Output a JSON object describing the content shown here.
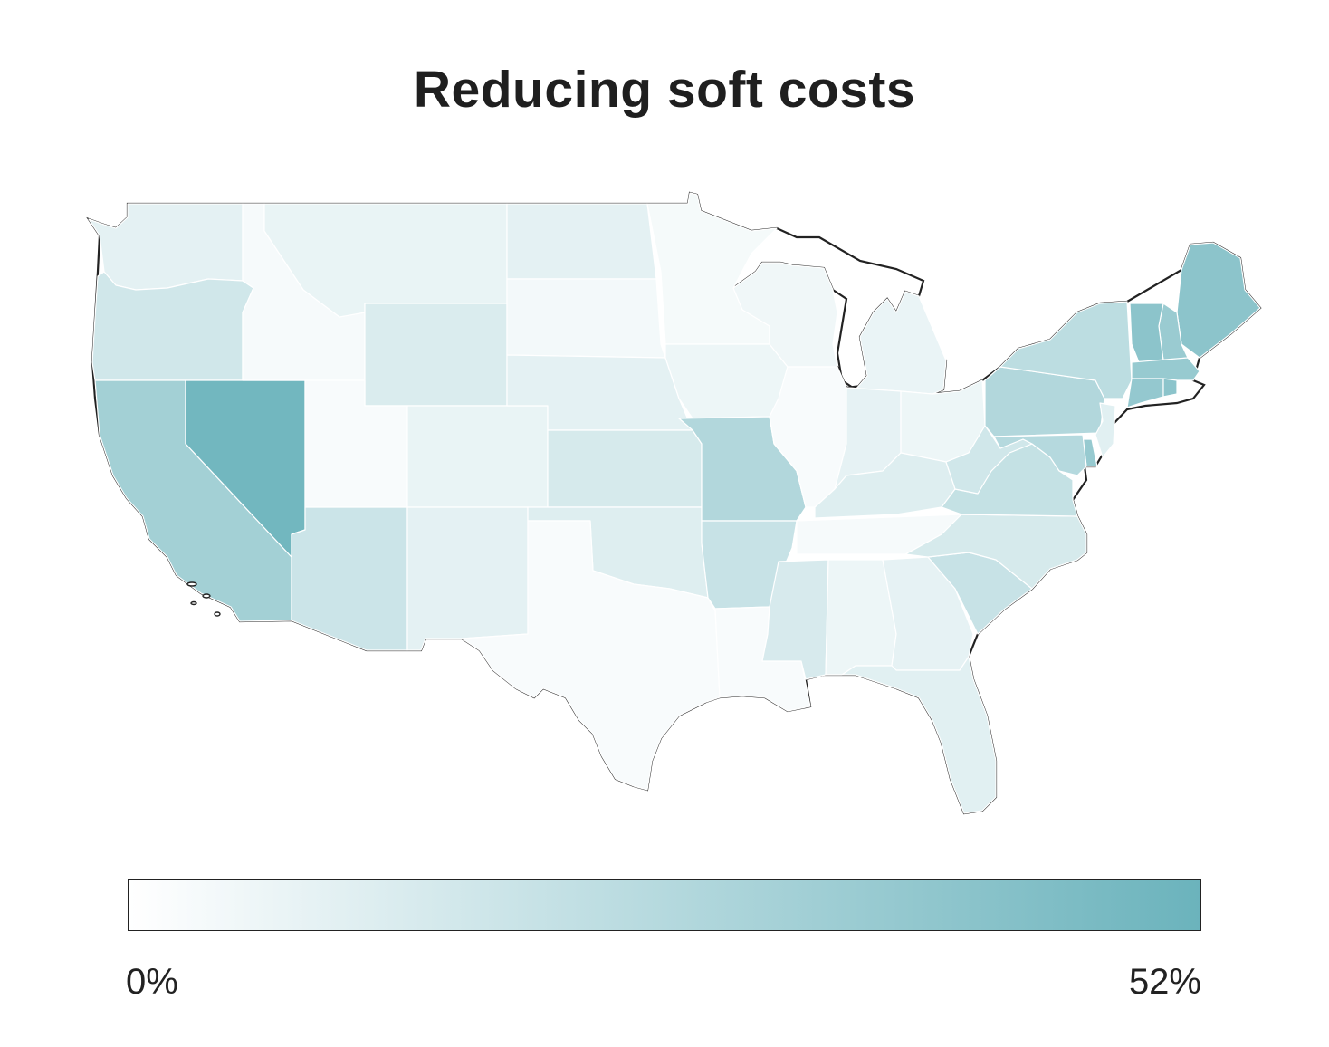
{
  "title": "Reducing soft costs",
  "legend": {
    "min_label": "0%",
    "max_label": "52%",
    "min_value": 0,
    "max_value": 52,
    "color_low": "#ffffff",
    "color_high": "#6bb3bc"
  },
  "map": {
    "type": "choropleth",
    "region": "contiguous United States",
    "metric_scale": "fraction of max (0-52%)",
    "states": {
      "WA": 0.18,
      "OR": 0.32,
      "CA": 0.62,
      "NV": 0.95,
      "ID": 0.06,
      "MT": 0.15,
      "WY": 0.25,
      "UT": 0.05,
      "AZ": 0.35,
      "CO": 0.15,
      "NM": 0.18,
      "ND": 0.18,
      "SD": 0.08,
      "NE": 0.18,
      "KS": 0.28,
      "OK": 0.22,
      "TX": 0.05,
      "MN": 0.07,
      "IA": 0.12,
      "MO": 0.52,
      "AR": 0.38,
      "LA": 0.05,
      "WI": 0.1,
      "IL": 0.05,
      "MI": 0.14,
      "IN": 0.17,
      "OH": 0.12,
      "KY": 0.22,
      "TN": 0.06,
      "MS": 0.27,
      "AL": 0.12,
      "GA": 0.17,
      "FL": 0.2,
      "SC": 0.38,
      "NC": 0.28,
      "VA": 0.4,
      "WV": 0.32,
      "PA": 0.52,
      "NY": 0.45,
      "NJ": 0.2,
      "DE": 0.7,
      "MD": 0.5,
      "ME": 0.78,
      "NH": 0.68,
      "VT": 0.78,
      "MA": 0.7,
      "CT": 0.72,
      "RI": 0.78
    }
  }
}
